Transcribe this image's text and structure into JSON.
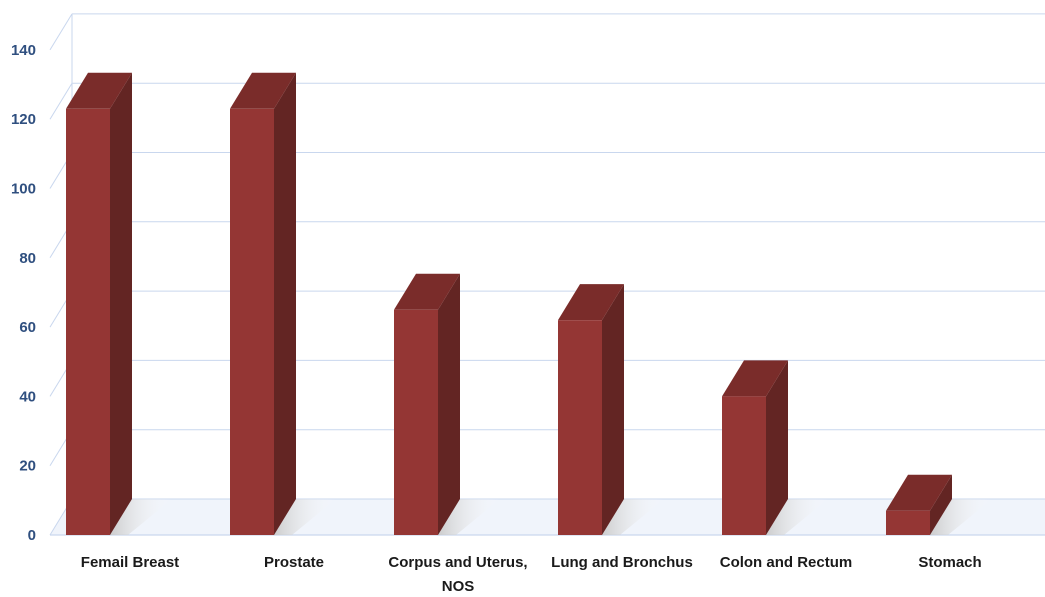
{
  "chart_data": {
    "type": "bar",
    "title": "",
    "xlabel": "",
    "ylabel": "",
    "categories": [
      [
        "Femail Breast"
      ],
      [
        "Prostate"
      ],
      [
        "Corpus and Uterus,",
        "NOS"
      ],
      [
        "Lung and Bronchus"
      ],
      [
        "Colon and Rectum"
      ],
      [
        "Stomach"
      ]
    ],
    "values": [
      123,
      123,
      65,
      62,
      40,
      7
    ],
    "ylim": [
      0,
      140
    ],
    "yticks": [
      0,
      20,
      40,
      60,
      80,
      100,
      120,
      140
    ],
    "grid": true,
    "legend": "none",
    "colors": {
      "bar_front": "#943634",
      "bar_side": "#632523",
      "bar_top": "#7a2c2a",
      "gridline": "#c9d7ee",
      "floor": "#e6edf8",
      "tick_text": "#2f4f7f",
      "category_text": "#1a1a1a"
    }
  }
}
